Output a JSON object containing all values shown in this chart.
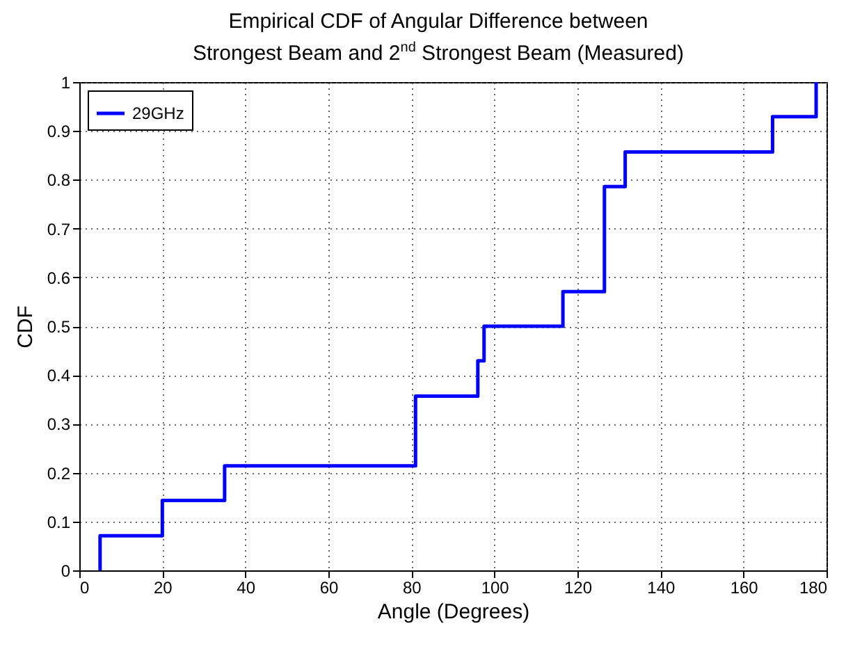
{
  "chart_data": {
    "type": "step",
    "title": "Empirical CDF of Angular Difference between\nStrongest Beam and 2$^{nd}$ Strongest Beam (Measured)",
    "xlabel": "Angle (Degrees)",
    "ylabel": "CDF",
    "x": [
      5,
      5,
      20,
      35,
      81,
      96,
      97.5,
      116.5,
      126.5,
      131.5,
      167,
      177.5
    ],
    "series": [
      {
        "name": "29GHz",
        "color": "#0000ff",
        "values": [
          0,
          0.071,
          0.143,
          0.214,
          0.357,
          0.429,
          0.5,
          0.571,
          0.786,
          0.857,
          0.929,
          1
        ]
      }
    ],
    "xlim": [
      0,
      180
    ],
    "xticks": [
      0,
      20,
      40,
      60,
      80,
      100,
      120,
      140,
      160,
      180
    ],
    "ylim": [
      0,
      1
    ],
    "yticks": [
      0,
      0.1,
      0.2,
      0.3,
      0.4,
      0.5,
      0.6,
      0.7,
      0.8,
      0.9,
      1
    ],
    "grid": true,
    "legend": "top left",
    "line_style": "solid",
    "marker": "none"
  }
}
